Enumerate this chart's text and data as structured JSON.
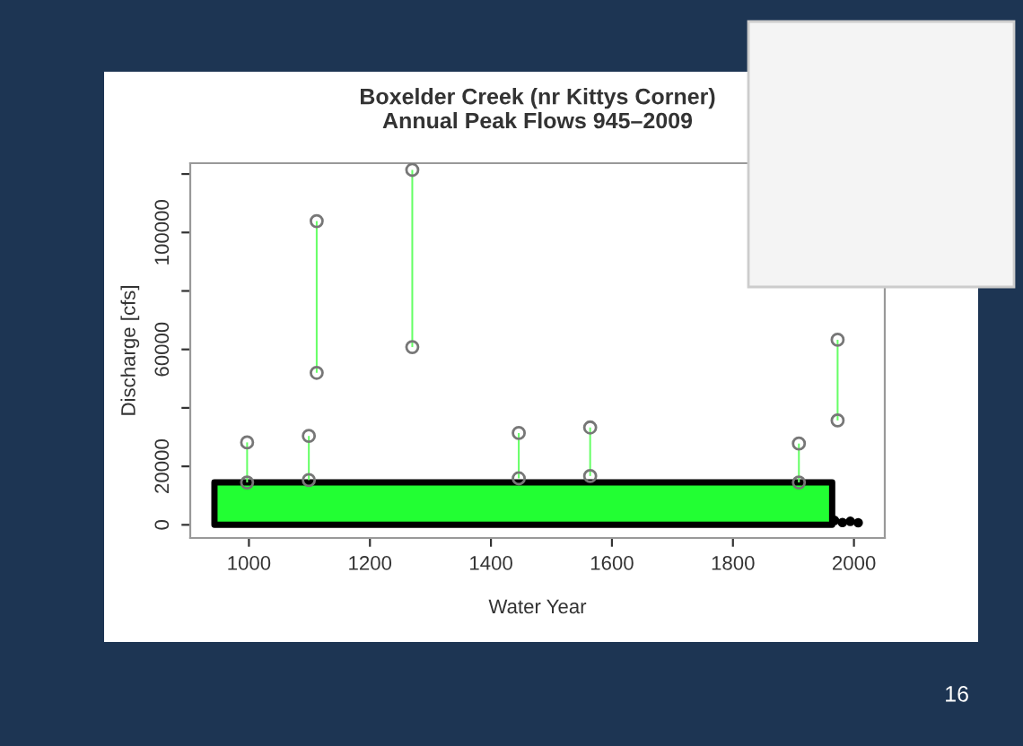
{
  "chart_data": {
    "type": "bar",
    "title": "Boxelder Creek (nr Kittys Corner)\nAnnual Peak Flows 945–2009",
    "xlabel": "Water Year",
    "ylabel": "Discharge [cfs]",
    "x": [
      997,
      1099,
      1112,
      1270,
      1446,
      1564,
      1909,
      1973
    ],
    "base": [
      14500,
      15300,
      52000,
      60800,
      15900,
      16700,
      14500,
      35700
    ],
    "values": [
      13700,
      15100,
      51900,
      60600,
      15500,
      16600,
      13300,
      27600
    ],
    "color": "#66ff66",
    "series": [
      {
        "type": "area",
        "x": [
          943,
          1964
        ],
        "values": [
          14500,
          14500
        ],
        "color": "#22ff33"
      },
      {
        "type": "scatter",
        "x": [
          1968,
          1981,
          1994,
          2007
        ],
        "values": [
          1500,
          800,
          1200,
          700
        ],
        "color": "#000000"
      },
      {
        "type": "scatter",
        "x": [
          997,
          1099,
          1112,
          1270,
          1446,
          1564,
          1909,
          1973
        ],
        "values": [
          28200,
          30400,
          103900,
          121400,
          31400,
          33300,
          27800,
          63300
        ],
        "color": "#777777",
        "marker": "circle"
      },
      {
        "type": "scatter",
        "x": [
          997,
          1099,
          1112,
          1270,
          1446,
          1564,
          1909,
          1973
        ],
        "values": [
          14500,
          15300,
          52000,
          60800,
          15900,
          16700,
          14500,
          35700
        ],
        "color": "#777777",
        "marker": "circle"
      }
    ],
    "xlim": [
      903,
      2051
    ],
    "ylim": [
      -4500,
      123700
    ],
    "xticks": [
      1000,
      1200,
      1400,
      1600,
      1800,
      2000
    ],
    "yticks": [
      0,
      20000,
      {
        "value": 40000,
        "label": null
      },
      60000,
      {
        "value": 80000,
        "label": null
      },
      100000,
      {
        "value": 120000,
        "label": null
      }
    ],
    "grid": false,
    "annotations": [
      "16"
    ]
  }
}
